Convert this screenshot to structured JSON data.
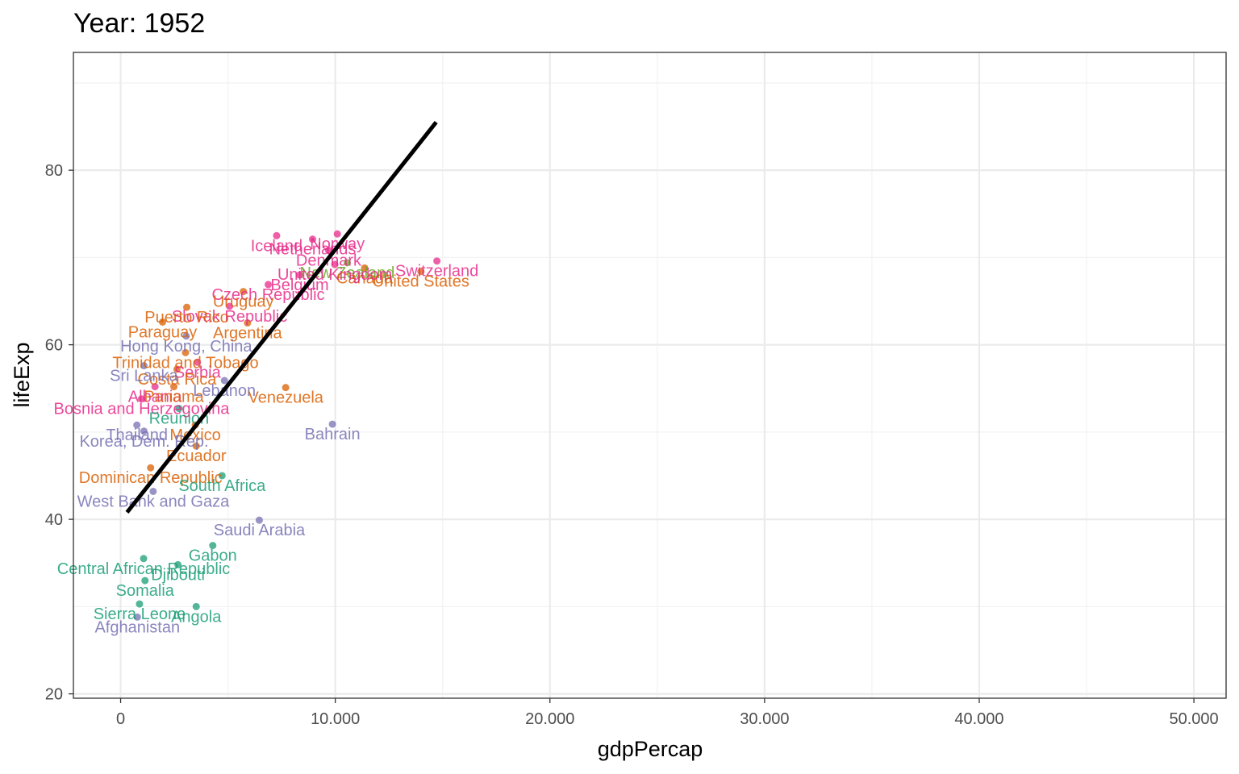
{
  "chart_data": {
    "type": "scatter",
    "title": "Year: 1952",
    "xlabel": "gdpPercap",
    "ylabel": "lifeExp",
    "xlim": [
      -2200,
      51500
    ],
    "ylim": [
      19.5,
      93.5
    ],
    "x_ticks": [
      {
        "value": 0,
        "label": "0"
      },
      {
        "value": 10000,
        "label": "10.000"
      },
      {
        "value": 20000,
        "label": "20.000"
      },
      {
        "value": 30000,
        "label": "30.000"
      },
      {
        "value": 40000,
        "label": "40.000"
      },
      {
        "value": 50000,
        "label": "50.000"
      }
    ],
    "y_ticks": [
      {
        "value": 20,
        "label": "20"
      },
      {
        "value": 40,
        "label": "40"
      },
      {
        "value": 60,
        "label": "60"
      },
      {
        "value": 80,
        "label": "80"
      }
    ],
    "grid": true,
    "legend": "none",
    "colors": {
      "Africa": "#1b9e77",
      "Americas": "#d95f02",
      "Asia": "#7570b3",
      "Europe": "#e7298a",
      "Oceania": "#66a61e"
    },
    "trend_line": {
      "x": [
        300,
        14700
      ],
      "y": [
        40.8,
        85.5
      ],
      "color": "#000000"
    },
    "labeled_points": [
      {
        "label": "Switzerland",
        "x": 14734,
        "y": 69.6,
        "group": "Europe"
      },
      {
        "label": "United States",
        "x": 13990,
        "y": 68.4,
        "group": "Americas"
      },
      {
        "label": "Norway",
        "x": 10095,
        "y": 72.7,
        "group": "Europe"
      },
      {
        "label": "Iceland",
        "x": 7268,
        "y": 72.5,
        "group": "Europe"
      },
      {
        "label": "Netherlands",
        "x": 8942,
        "y": 72.1,
        "group": "Europe"
      },
      {
        "label": "Denmark",
        "x": 9692,
        "y": 70.8,
        "group": "Europe"
      },
      {
        "label": "New Zealand",
        "x": 10557,
        "y": 69.4,
        "group": "Oceania"
      },
      {
        "label": "Canada",
        "x": 11367,
        "y": 68.8,
        "group": "Americas"
      },
      {
        "label": "United Kingdom",
        "x": 9980,
        "y": 69.2,
        "group": "Europe"
      },
      {
        "label": "Belgium",
        "x": 8343,
        "y": 68.0,
        "group": "Europe"
      },
      {
        "label": "Czech Republic",
        "x": 6876,
        "y": 66.9,
        "group": "Europe"
      },
      {
        "label": "Slovak Republic",
        "x": 5074,
        "y": 64.4,
        "group": "Europe"
      },
      {
        "label": "Uruguay",
        "x": 5717,
        "y": 66.1,
        "group": "Americas"
      },
      {
        "label": "Argentina",
        "x": 5911,
        "y": 62.5,
        "group": "Americas"
      },
      {
        "label": "Puerto Rico",
        "x": 3082,
        "y": 64.3,
        "group": "Americas"
      },
      {
        "label": "Paraguay",
        "x": 1953,
        "y": 62.6,
        "group": "Americas"
      },
      {
        "label": "Hong Kong, China",
        "x": 3054,
        "y": 61.0,
        "group": "Asia"
      },
      {
        "label": "Trinidad and Tobago",
        "x": 3023,
        "y": 59.1,
        "group": "Americas"
      },
      {
        "label": "Serbia",
        "x": 3581,
        "y": 58.0,
        "group": "Europe"
      },
      {
        "label": "Costa Rica",
        "x": 2627,
        "y": 57.2,
        "group": "Americas"
      },
      {
        "label": "Sri Lanka",
        "x": 1084,
        "y": 57.6,
        "group": "Asia"
      },
      {
        "label": "Albania",
        "x": 1601,
        "y": 55.2,
        "group": "Europe"
      },
      {
        "label": "Panama",
        "x": 2480,
        "y": 55.2,
        "group": "Americas"
      },
      {
        "label": "Lebanon",
        "x": 4835,
        "y": 55.9,
        "group": "Asia"
      },
      {
        "label": "Venezuela",
        "x": 7690,
        "y": 55.1,
        "group": "Americas"
      },
      {
        "label": "Bosnia and Herzegovina",
        "x": 974,
        "y": 53.8,
        "group": "Europe"
      },
      {
        "label": "Reunion",
        "x": 2719,
        "y": 52.7,
        "group": "Africa"
      },
      {
        "label": "Bahrain",
        "x": 9867,
        "y": 50.9,
        "group": "Asia"
      },
      {
        "label": "Mexico",
        "x": 3478,
        "y": 50.8,
        "group": "Americas"
      },
      {
        "label": "Thailand",
        "x": 757,
        "y": 50.8,
        "group": "Asia"
      },
      {
        "label": "Korea, Dem. Rep.",
        "x": 1088,
        "y": 50.1,
        "group": "Asia"
      },
      {
        "label": "Ecuador",
        "x": 3522,
        "y": 48.4,
        "group": "Americas"
      },
      {
        "label": "Dominican Republic",
        "x": 1398,
        "y": 45.9,
        "group": "Americas"
      },
      {
        "label": "South Africa",
        "x": 4725,
        "y": 45.0,
        "group": "Africa"
      },
      {
        "label": "West Bank and Gaza",
        "x": 1516,
        "y": 43.2,
        "group": "Asia"
      },
      {
        "label": "Saudi Arabia",
        "x": 6460,
        "y": 39.9,
        "group": "Asia"
      },
      {
        "label": "Gabon",
        "x": 4293,
        "y": 37.0,
        "group": "Africa"
      },
      {
        "label": "Central African Republic",
        "x": 1071,
        "y": 35.5,
        "group": "Africa"
      },
      {
        "label": "Djibouti",
        "x": 2670,
        "y": 34.8,
        "group": "Africa"
      },
      {
        "label": "Somalia",
        "x": 1136,
        "y": 32.98,
        "group": "Africa"
      },
      {
        "label": "Angola",
        "x": 3521,
        "y": 30.0,
        "group": "Africa"
      },
      {
        "label": "Sierra Leone",
        "x": 880,
        "y": 30.3,
        "group": "Africa"
      },
      {
        "label": "Afghanistan",
        "x": 779,
        "y": 28.8,
        "group": "Asia"
      }
    ]
  }
}
